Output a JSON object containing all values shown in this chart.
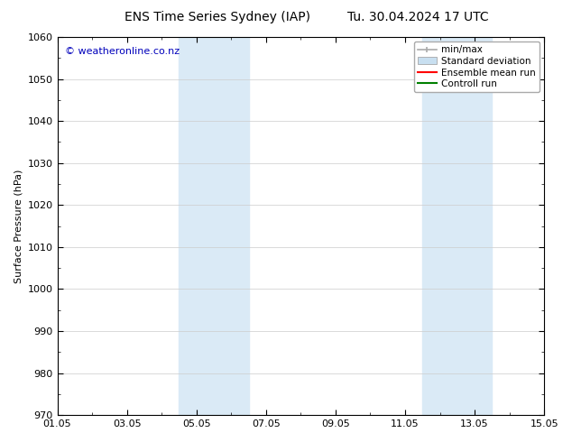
{
  "title_left": "ENS Time Series Sydney (IAP)",
  "title_right": "Tu. 30.04.2024 17 UTC",
  "ylabel": "Surface Pressure (hPa)",
  "ylim": [
    970,
    1060
  ],
  "yticks": [
    970,
    980,
    990,
    1000,
    1010,
    1020,
    1030,
    1040,
    1050,
    1060
  ],
  "xlim": [
    0,
    14
  ],
  "xtick_positions": [
    0,
    2,
    4,
    6,
    8,
    10,
    12,
    14
  ],
  "xtick_labels": [
    "01.05",
    "03.05",
    "05.05",
    "07.05",
    "09.05",
    "11.05",
    "13.05",
    "15.05"
  ],
  "shaded_bands": [
    {
      "x_start": 3.5,
      "x_end": 5.5
    },
    {
      "x_start": 10.5,
      "x_end": 12.5
    }
  ],
  "band_color": "#daeaf6",
  "watermark_text": "© weatheronline.co.nz",
  "watermark_color": "#0000bb",
  "legend_items": [
    {
      "label": "min/max",
      "color": "#aaaaaa",
      "type": "line_with_caps"
    },
    {
      "label": "Standard deviation",
      "color": "#c8dff0",
      "type": "filled_box"
    },
    {
      "label": "Ensemble mean run",
      "color": "#ff0000",
      "type": "line"
    },
    {
      "label": "Controll run",
      "color": "#008000",
      "type": "line"
    }
  ],
  "bg_color": "#ffffff",
  "grid_color": "#cccccc",
  "font_size_title": 10,
  "font_size_axis": 8,
  "font_size_legend": 7.5,
  "font_size_watermark": 8
}
